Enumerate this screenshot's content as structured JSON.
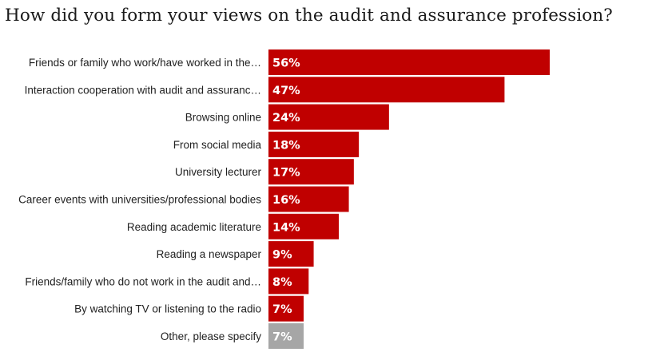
{
  "chart_data": {
    "type": "bar",
    "orientation": "horizontal",
    "title": "How did you form your views on the audit and assurance profession?",
    "categories": [
      "Friends or family who work/have worked in the…",
      "Interaction cooperation with audit and assuranc…",
      "Browsing online",
      "From social media",
      "University lecturer",
      "Career events with universities/professional bodies",
      "Reading academic literature",
      "Reading a newspaper",
      "Friends/family who do not work in the audit and…",
      "By watching TV or listening to the radio",
      "Other, please specify"
    ],
    "values": [
      56,
      47,
      24,
      18,
      17,
      16,
      14,
      9,
      8,
      7,
      7
    ],
    "value_labels": [
      "56%",
      "47%",
      "24%",
      "18%",
      "17%",
      "16%",
      "14%",
      "9%",
      "8%",
      "7%",
      "7%"
    ],
    "colors": [
      "#c00000",
      "#c00000",
      "#c00000",
      "#c00000",
      "#c00000",
      "#c00000",
      "#c00000",
      "#c00000",
      "#c00000",
      "#c00000",
      "#a6a6a6"
    ],
    "xlim": [
      0,
      56
    ],
    "xlabel": "",
    "ylabel": "",
    "grid": false,
    "legend": "none"
  }
}
